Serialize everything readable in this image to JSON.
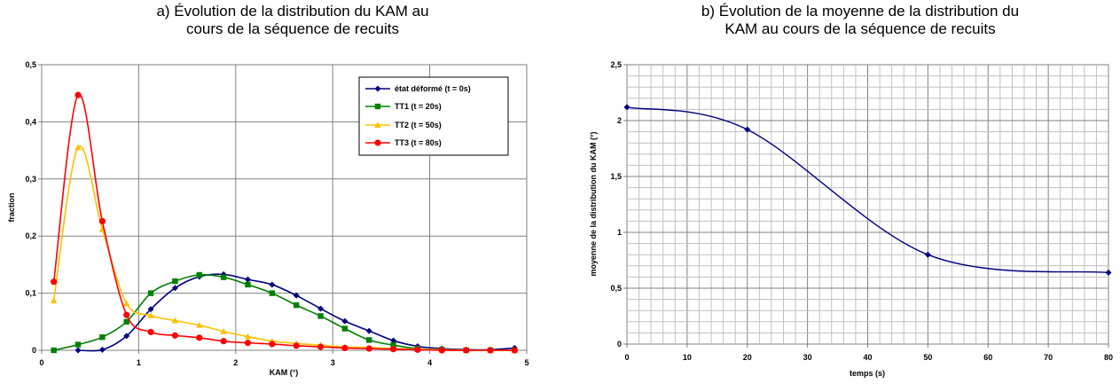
{
  "chart_data": [
    {
      "type": "line",
      "title_lines": [
        "a) Évolution de la distribution du KAM au",
        "cours de la séquence de recuits"
      ],
      "xlabel": "KAM (°)",
      "ylabel": "fraction",
      "xlim": [
        0,
        5
      ],
      "ylim": [
        0,
        0.5
      ],
      "x_ticks": [
        "0",
        "1",
        "2",
        "3",
        "4",
        "5"
      ],
      "y_ticks": [
        "0",
        "0,1",
        "0,2",
        "0,3",
        "0,4",
        "0,5"
      ],
      "grid": true,
      "legend_position": "top-right",
      "series": [
        {
          "name": "état déformé (t = 0s)",
          "color": "#000080",
          "marker": "diamond",
          "points": [
            [
              0.375,
              0
            ],
            [
              0.625,
              0.001
            ],
            [
              0.875,
              0.025
            ],
            [
              1.125,
              0.072
            ],
            [
              1.375,
              0.109
            ],
            [
              1.625,
              0.129
            ],
            [
              1.875,
              0.133
            ],
            [
              2.125,
              0.124
            ],
            [
              2.375,
              0.115
            ],
            [
              2.625,
              0.096
            ],
            [
              2.875,
              0.073
            ],
            [
              3.125,
              0.051
            ],
            [
              3.375,
              0.034
            ],
            [
              3.625,
              0.017
            ],
            [
              3.875,
              0.007
            ],
            [
              4.125,
              0.003
            ],
            [
              4.375,
              0.001
            ],
            [
              4.625,
              0.001
            ],
            [
              4.875,
              0.004
            ]
          ]
        },
        {
          "name": "TT1 (t = 20s)",
          "color": "#008000",
          "marker": "square",
          "points": [
            [
              0.125,
              0
            ],
            [
              0.375,
              0.01
            ],
            [
              0.625,
              0.023
            ],
            [
              0.875,
              0.05
            ],
            [
              1.125,
              0.1
            ],
            [
              1.375,
              0.121
            ],
            [
              1.625,
              0.132
            ],
            [
              1.875,
              0.128
            ],
            [
              2.125,
              0.115
            ],
            [
              2.375,
              0.1
            ],
            [
              2.625,
              0.079
            ],
            [
              2.875,
              0.06
            ],
            [
              3.125,
              0.038
            ],
            [
              3.375,
              0.018
            ],
            [
              3.625,
              0.009
            ],
            [
              3.875,
              0.003
            ],
            [
              4.125,
              0.001
            ],
            [
              4.375,
              0
            ],
            [
              4.625,
              0
            ],
            [
              4.875,
              0
            ]
          ]
        },
        {
          "name": "TT2 (t = 50s)",
          "color": "#FFC000",
          "marker": "triangle",
          "points": [
            [
              0.125,
              0.087
            ],
            [
              0.375,
              0.355
            ],
            [
              0.625,
              0.212
            ],
            [
              0.875,
              0.082
            ],
            [
              1.125,
              0.061
            ],
            [
              1.375,
              0.052
            ],
            [
              1.625,
              0.044
            ],
            [
              1.875,
              0.033
            ],
            [
              2.125,
              0.024
            ],
            [
              2.375,
              0.016
            ],
            [
              2.625,
              0.012
            ],
            [
              2.875,
              0.009
            ],
            [
              3.125,
              0.006
            ],
            [
              3.375,
              0.005
            ],
            [
              3.625,
              0.003
            ],
            [
              3.875,
              0.002
            ],
            [
              4.125,
              0.001
            ],
            [
              4.375,
              0
            ],
            [
              4.625,
              0
            ],
            [
              4.875,
              0
            ]
          ]
        },
        {
          "name": "TT3 (t = 80s)",
          "color": "#FF0000",
          "marker": "circle",
          "points": [
            [
              0.125,
              0.12
            ],
            [
              0.375,
              0.447
            ],
            [
              0.625,
              0.226
            ],
            [
              0.875,
              0.062
            ],
            [
              1.125,
              0.032
            ],
            [
              1.375,
              0.026
            ],
            [
              1.625,
              0.022
            ],
            [
              1.875,
              0.016
            ],
            [
              2.125,
              0.013
            ],
            [
              2.375,
              0.011
            ],
            [
              2.625,
              0.008
            ],
            [
              2.875,
              0.006
            ],
            [
              3.125,
              0.004
            ],
            [
              3.375,
              0.003
            ],
            [
              3.625,
              0.002
            ],
            [
              3.875,
              0.001
            ],
            [
              4.125,
              0
            ],
            [
              4.375,
              0
            ],
            [
              4.625,
              0
            ],
            [
              4.875,
              0
            ]
          ]
        }
      ]
    },
    {
      "type": "line",
      "title_lines": [
        "b) Évolution de la moyenne de la distribution du",
        "KAM au cours de la séquence de recuits"
      ],
      "xlabel": "temps (s)",
      "ylabel": "moyenne de la distribution du KAM (°)",
      "xlim": [
        0,
        80
      ],
      "ylim": [
        0,
        2.5
      ],
      "x_ticks": [
        "0",
        "10",
        "20",
        "30",
        "40",
        "50",
        "60",
        "70",
        "80"
      ],
      "y_ticks": [
        "0",
        "0,5",
        "1",
        "1,5",
        "2",
        "2,5"
      ],
      "grid": true,
      "series": [
        {
          "color": "#000080",
          "marker": "diamond",
          "points": [
            [
              0,
              2.12
            ],
            [
              20,
              1.92
            ],
            [
              50,
              0.8
            ],
            [
              80,
              0.64
            ]
          ]
        }
      ]
    }
  ]
}
